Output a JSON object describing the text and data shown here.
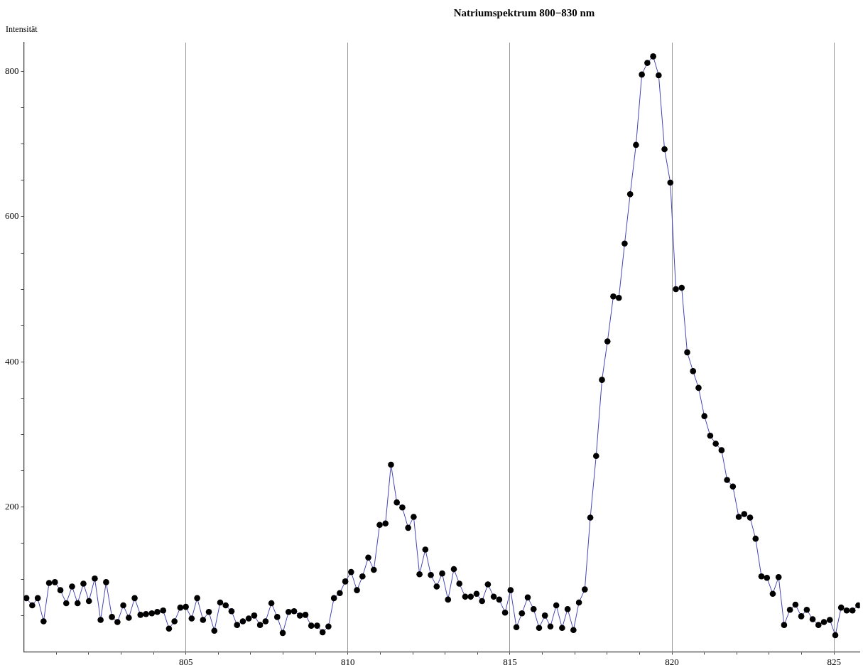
{
  "chart_data": {
    "type": "line",
    "title": "Natriumspektrum 800−830 nm",
    "ylabel": "Intensität",
    "xlim": [
      800,
      825.8
    ],
    "ylim": [
      0,
      840
    ],
    "xticks": [
      {
        "value": 801,
        "label": null
      },
      {
        "value": 802,
        "label": null
      },
      {
        "value": 803,
        "label": null
      },
      {
        "value": 804,
        "label": null
      },
      805,
      {
        "value": 806,
        "label": null
      },
      {
        "value": 807,
        "label": null
      },
      {
        "value": 808,
        "label": null
      },
      {
        "value": 809,
        "label": null
      },
      810,
      {
        "value": 811,
        "label": null
      },
      {
        "value": 812,
        "label": null
      },
      {
        "value": 813,
        "label": null
      },
      {
        "value": 814,
        "label": null
      },
      815,
      {
        "value": 816,
        "label": null
      },
      {
        "value": 817,
        "label": null
      },
      {
        "value": 818,
        "label": null
      },
      {
        "value": 819,
        "label": null
      },
      820,
      {
        "value": 821,
        "label": null
      },
      {
        "value": 822,
        "label": null
      },
      {
        "value": 823,
        "label": null
      },
      {
        "value": 824,
        "label": null
      },
      825
    ],
    "yticks": [
      {
        "value": 50,
        "label": null
      },
      {
        "value": 100,
        "label": null
      },
      {
        "value": 150,
        "label": null
      },
      200,
      {
        "value": 250,
        "label": null
      },
      {
        "value": 300,
        "label": null
      },
      {
        "value": 350,
        "label": null
      },
      400,
      {
        "value": 450,
        "label": null
      },
      {
        "value": 500,
        "label": null
      },
      {
        "value": 550,
        "label": null
      },
      600,
      {
        "value": 650,
        "label": null
      },
      {
        "value": 700,
        "label": null
      },
      {
        "value": 750,
        "label": null
      },
      800
    ],
    "grid": "x",
    "legend": false,
    "marker": "circle",
    "line_style": "solid",
    "series": [
      {
        "color": "#4545b5",
        "x": [
          800.08,
          800.26,
          800.43,
          800.61,
          800.78,
          800.96,
          801.13,
          801.31,
          801.49,
          801.66,
          801.84,
          802.01,
          802.19,
          802.37,
          802.54,
          802.72,
          802.89,
          803.07,
          803.24,
          803.42,
          803.6,
          803.77,
          803.95,
          804.12,
          804.3,
          804.48,
          804.65,
          804.83,
          805.0,
          805.18,
          805.35,
          805.53,
          805.71,
          805.88,
          806.06,
          806.23,
          806.41,
          806.58,
          806.76,
          806.94,
          807.11,
          807.29,
          807.46,
          807.64,
          807.82,
          807.99,
          808.17,
          808.34,
          808.52,
          808.69,
          808.87,
          809.05,
          809.22,
          809.4,
          809.57,
          809.75,
          809.92,
          810.1,
          810.28,
          810.45,
          810.63,
          810.8,
          810.98,
          811.16,
          811.33,
          811.51,
          811.68,
          811.86,
          812.03,
          812.21,
          812.39,
          812.56,
          812.74,
          812.91,
          813.09,
          813.27,
          813.44,
          813.62,
          813.79,
          813.97,
          814.14,
          814.32,
          814.5,
          814.67,
          814.85,
          815.02,
          815.2,
          815.37,
          815.55,
          815.73,
          815.9,
          816.08,
          816.25,
          816.43,
          816.61,
          816.78,
          816.96,
          817.13,
          817.31,
          817.48,
          817.66,
          817.84,
          818.01,
          818.19,
          818.36,
          818.54,
          818.71,
          818.89,
          819.07,
          819.24,
          819.42,
          819.59,
          819.77,
          819.95,
          820.12,
          820.3,
          820.47,
          820.65,
          820.82,
          821.0,
          821.18,
          821.35,
          821.53,
          821.7,
          821.88,
          822.06,
          822.23,
          822.41,
          822.58,
          822.76,
          822.93,
          823.11,
          823.29,
          823.46,
          823.64,
          823.81,
          823.99,
          824.16,
          824.34,
          824.52,
          824.69,
          824.87,
          825.04,
          825.22,
          825.39,
          825.57,
          825.75
        ],
        "values": [
          74,
          64,
          74,
          42,
          95,
          96,
          85,
          67,
          90,
          67,
          94,
          70,
          101,
          44,
          96,
          48,
          41,
          64,
          47,
          74,
          51,
          52,
          53,
          55,
          57,
          32,
          42,
          61,
          62,
          46,
          74,
          44,
          55,
          29,
          68,
          64,
          56,
          37,
          42,
          46,
          50,
          37,
          42,
          67,
          48,
          26,
          55,
          56,
          50,
          51,
          36,
          36,
          27,
          35,
          74,
          81,
          97,
          110,
          85,
          104,
          130,
          113,
          175,
          177,
          258,
          206,
          199,
          171,
          186,
          107,
          141,
          106,
          90,
          108,
          72,
          114,
          94,
          76,
          76,
          80,
          70,
          93,
          76,
          72,
          54,
          85,
          34,
          53,
          75,
          59,
          33,
          50,
          35,
          64,
          33,
          59,
          30,
          68,
          86,
          185,
          270,
          375,
          428,
          490,
          488,
          563,
          631,
          699,
          796,
          812,
          821,
          795,
          693,
          647,
          500,
          502,
          413,
          387,
          364,
          325,
          298,
          287,
          278,
          237,
          228,
          186,
          190,
          185,
          156,
          104,
          102,
          80,
          103,
          37,
          58,
          65,
          49,
          58,
          45,
          37,
          41,
          44,
          23,
          61,
          57,
          57,
          64
        ]
      }
    ]
  }
}
